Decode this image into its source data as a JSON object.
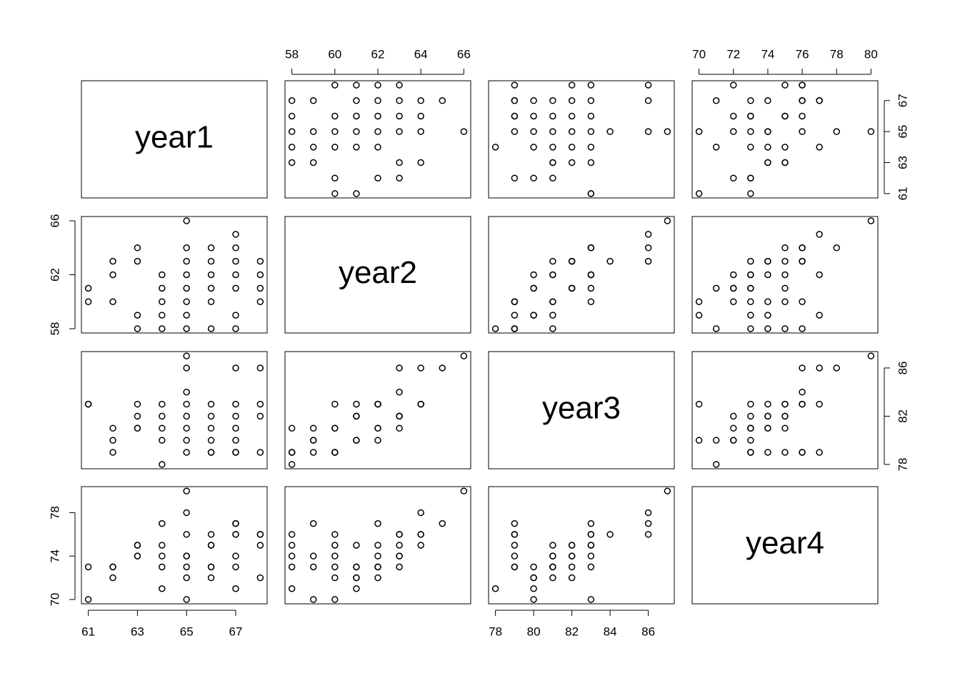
{
  "chart_data": {
    "type": "scatter-matrix",
    "color": "#000000",
    "variables": [
      {
        "name": "year1",
        "lim": [
          60.72,
          68.28
        ],
        "xticks": [
          61,
          63,
          65,
          67
        ],
        "yticks": [
          61,
          63,
          65,
          67
        ],
        "values": [
          61,
          61,
          62,
          62,
          62,
          63,
          63,
          63,
          63,
          64,
          64,
          64,
          64,
          64,
          65,
          65,
          65,
          65,
          65,
          65,
          65,
          65,
          66,
          66,
          66,
          66,
          66,
          66,
          67,
          67,
          67,
          67,
          67,
          67,
          67,
          68,
          68,
          68,
          68
        ]
      },
      {
        "name": "year2",
        "lim": [
          57.68,
          66.32
        ],
        "xticks": [
          58,
          60,
          62,
          64,
          66
        ],
        "yticks": [
          58,
          62,
          66
        ],
        "values": [
          61,
          60,
          63,
          62,
          60,
          64,
          63,
          59,
          58,
          62,
          61,
          60,
          59,
          58,
          66,
          64,
          63,
          62,
          61,
          60,
          59,
          58,
          64,
          63,
          62,
          61,
          60,
          58,
          65,
          64,
          63,
          62,
          61,
          59,
          58,
          63,
          62,
          61,
          60
        ]
      },
      {
        "name": "year3",
        "lim": [
          77.64,
          87.36
        ],
        "xticks": [
          78,
          80,
          82,
          84,
          86
        ],
        "yticks": [
          78,
          82,
          86
        ],
        "values": [
          83,
          83,
          81,
          80,
          79,
          83,
          82,
          81,
          81,
          83,
          82,
          81,
          80,
          78,
          87,
          86,
          84,
          83,
          82,
          81,
          80,
          79,
          83,
          82,
          81,
          80,
          79,
          79,
          86,
          83,
          82,
          81,
          80,
          79,
          79,
          86,
          83,
          82,
          79
        ]
      },
      {
        "name": "year4",
        "lim": [
          69.6,
          80.4
        ],
        "xticks": [
          70,
          72,
          74,
          76,
          78,
          80
        ],
        "yticks": [
          70,
          74,
          78
        ],
        "values": [
          73,
          70,
          73,
          72,
          73,
          75,
          74,
          74,
          75,
          77,
          75,
          74,
          73,
          71,
          80,
          78,
          76,
          74,
          73,
          72,
          70,
          74,
          76,
          75,
          73,
          72,
          75,
          73,
          77,
          76,
          74,
          73,
          71,
          77,
          76,
          76,
          75,
          72,
          76
        ]
      }
    ]
  }
}
